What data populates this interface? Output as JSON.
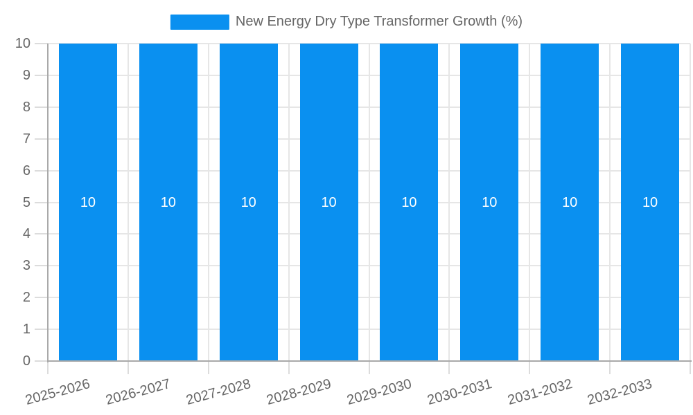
{
  "chart_data": {
    "type": "bar",
    "title": "",
    "legend": {
      "label": "New Energy Dry Type Transformer Growth (%)",
      "position": "top-center"
    },
    "categories": [
      "2025-2026",
      "2026-2027",
      "2027-2028",
      "2028-2029",
      "2029-2030",
      "2030-2031",
      "2031-2032",
      "2032-2033"
    ],
    "series": [
      {
        "name": "New Energy Dry Type Transformer Growth (%)",
        "values": [
          10,
          10,
          10,
          10,
          10,
          10,
          10,
          10
        ],
        "data_labels": [
          "10",
          "10",
          "10",
          "10",
          "10",
          "10",
          "10",
          "10"
        ]
      }
    ],
    "xlabel": "",
    "ylabel": "",
    "ylim": [
      0,
      10
    ],
    "ytick_labels": [
      "0",
      "1",
      "2",
      "3",
      "4",
      "5",
      "6",
      "7",
      "8",
      "9",
      "10"
    ],
    "grid": true,
    "x_label_rotation_deg": -15,
    "colors": {
      "bar": "#0a90f0",
      "grid": "#e6e6e6",
      "tick": "#dcdcdc",
      "axis": "#a9a9a9",
      "axis_label": "#666666",
      "data_label": "#ffffff",
      "background": "#ffffff"
    }
  }
}
